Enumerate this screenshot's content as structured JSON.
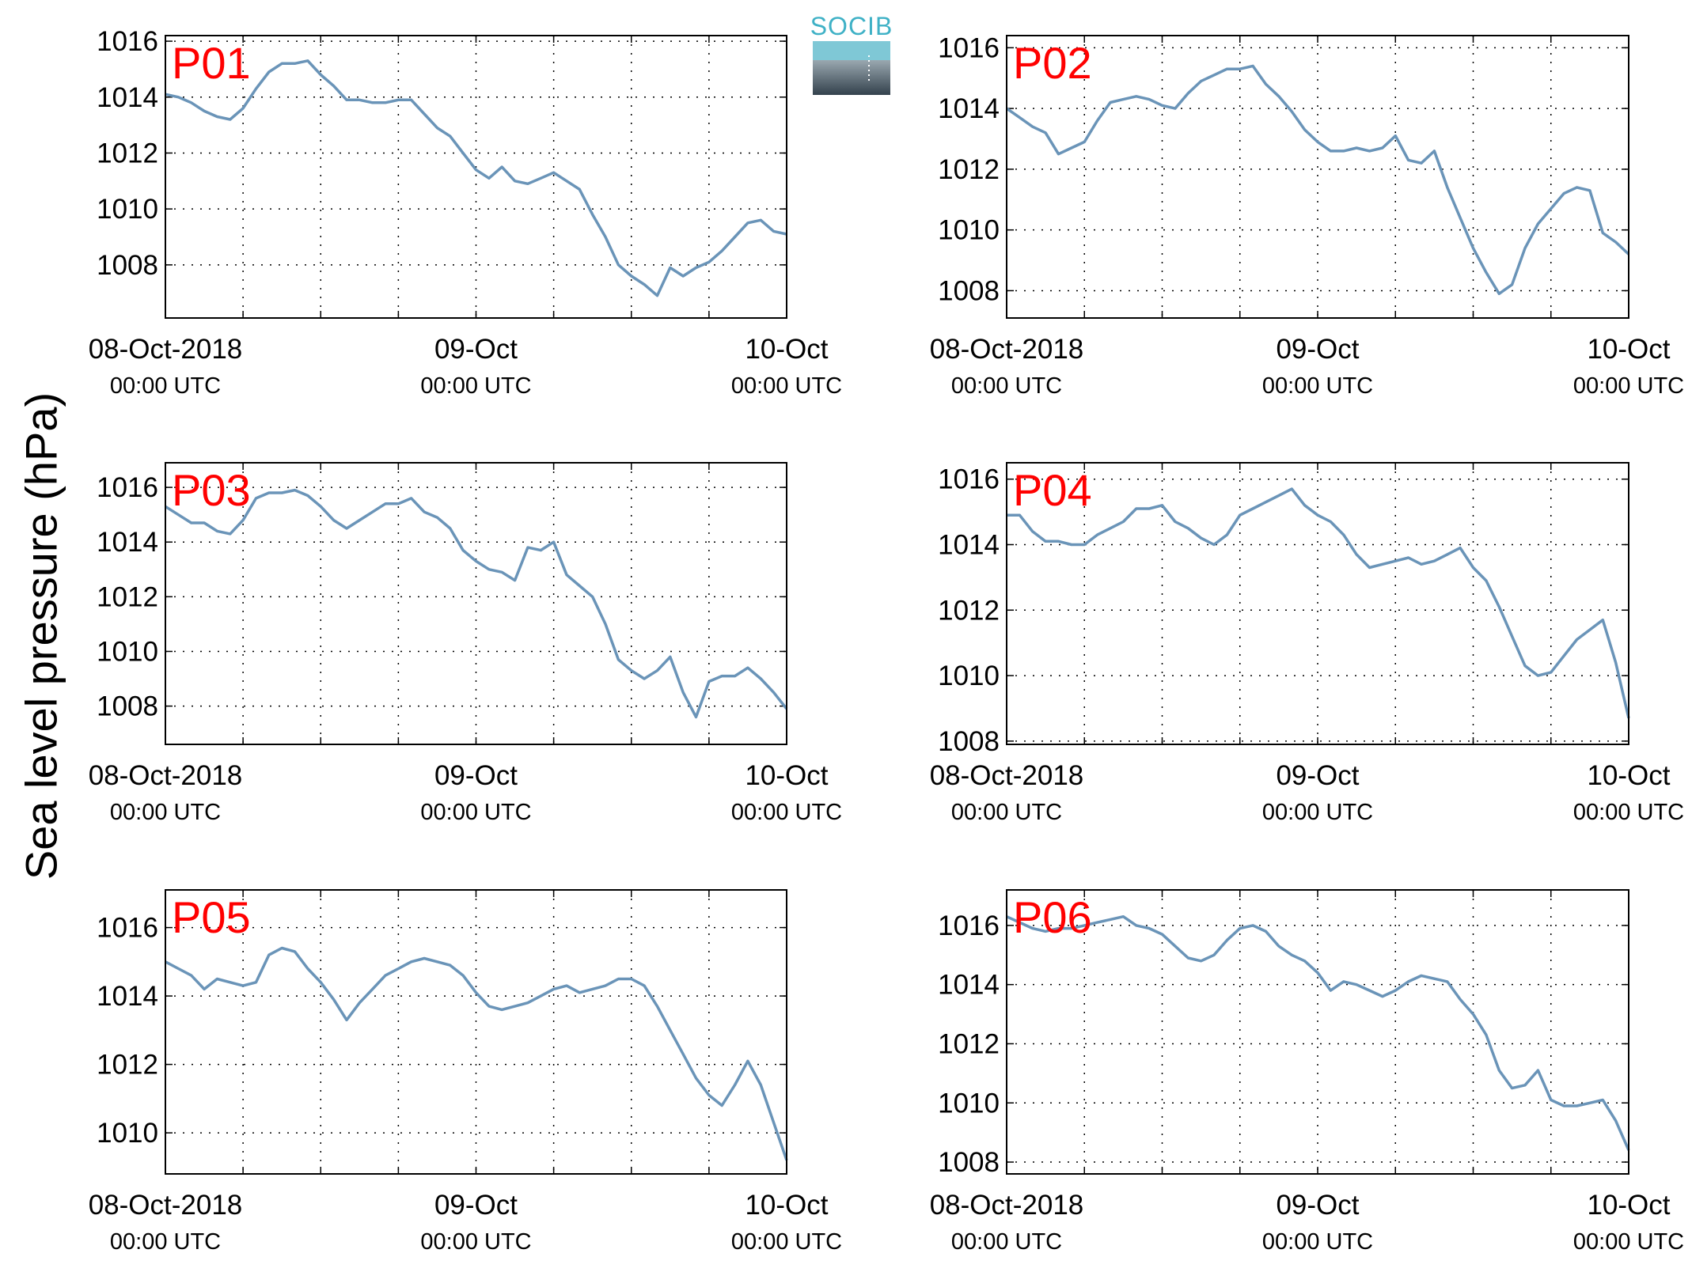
{
  "ylabel": "Sea level pressure (hPa)",
  "logo": {
    "text": "SOCIB"
  },
  "colors": {
    "line": "#6a94b8",
    "label": "#ff0000"
  },
  "x_ticks": [
    {
      "main": "08-Oct-2018",
      "sub": "00:00 UTC"
    },
    {
      "main": "09-Oct",
      "sub": "00:00 UTC"
    },
    {
      "main": "10-Oct",
      "sub": "00:00 UTC"
    }
  ],
  "chart_data": [
    {
      "type": "line",
      "label": "P01",
      "xlim": [
        0,
        48
      ],
      "ylim": [
        1006.1,
        1016.2
      ],
      "yticks": [
        1008,
        1010,
        1012,
        1014,
        1016
      ],
      "x": [
        0,
        1,
        2,
        3,
        4,
        5,
        6,
        7,
        8,
        9,
        10,
        11,
        12,
        13,
        14,
        15,
        16,
        17,
        18,
        19,
        20,
        21,
        22,
        23,
        24,
        25,
        26,
        27,
        28,
        29,
        30,
        31,
        32,
        33,
        34,
        35,
        36,
        37,
        38,
        39,
        40,
        41,
        42,
        43,
        44,
        45,
        46,
        47,
        48
      ],
      "y": [
        1014.1,
        1014.0,
        1013.8,
        1013.5,
        1013.3,
        1013.2,
        1013.6,
        1014.3,
        1014.9,
        1015.2,
        1015.2,
        1015.3,
        1014.8,
        1014.4,
        1013.9,
        1013.9,
        1013.8,
        1013.8,
        1013.9,
        1013.9,
        1013.4,
        1012.9,
        1012.6,
        1012.0,
        1011.4,
        1011.1,
        1011.5,
        1011.0,
        1010.9,
        1011.1,
        1011.3,
        1011.0,
        1010.7,
        1009.8,
        1009.0,
        1008.0,
        1007.6,
        1007.3,
        1006.9,
        1007.9,
        1007.6,
        1007.9,
        1008.1,
        1008.5,
        1009.0,
        1009.5,
        1009.6,
        1009.2,
        1009.1
      ]
    },
    {
      "type": "line",
      "label": "P02",
      "xlim": [
        0,
        48
      ],
      "ylim": [
        1007.1,
        1016.4
      ],
      "yticks": [
        1008,
        1010,
        1012,
        1014,
        1016
      ],
      "x": [
        0,
        1,
        2,
        3,
        4,
        5,
        6,
        7,
        8,
        9,
        10,
        11,
        12,
        13,
        14,
        15,
        16,
        17,
        18,
        19,
        20,
        21,
        22,
        23,
        24,
        25,
        26,
        27,
        28,
        29,
        30,
        31,
        32,
        33,
        34,
        35,
        36,
        37,
        38,
        39,
        40,
        41,
        42,
        43,
        44,
        45,
        46,
        47,
        48
      ],
      "y": [
        1014.0,
        1013.7,
        1013.4,
        1013.2,
        1012.5,
        1012.7,
        1012.9,
        1013.6,
        1014.2,
        1014.3,
        1014.4,
        1014.3,
        1014.1,
        1014.0,
        1014.5,
        1014.9,
        1015.1,
        1015.3,
        1015.3,
        1015.4,
        1014.8,
        1014.4,
        1013.9,
        1013.3,
        1012.9,
        1012.6,
        1012.6,
        1012.7,
        1012.6,
        1012.7,
        1013.1,
        1012.3,
        1012.2,
        1012.6,
        1011.4,
        1010.4,
        1009.4,
        1008.6,
        1007.9,
        1008.2,
        1009.4,
        1010.2,
        1010.7,
        1011.2,
        1011.4,
        1011.3,
        1009.9,
        1009.6,
        1009.2
      ]
    },
    {
      "type": "line",
      "label": "P03",
      "xlim": [
        0,
        48
      ],
      "ylim": [
        1006.6,
        1016.9
      ],
      "yticks": [
        1008,
        1010,
        1012,
        1014,
        1016
      ],
      "x": [
        0,
        1,
        2,
        3,
        4,
        5,
        6,
        7,
        8,
        9,
        10,
        11,
        12,
        13,
        14,
        15,
        16,
        17,
        18,
        19,
        20,
        21,
        22,
        23,
        24,
        25,
        26,
        27,
        28,
        29,
        30,
        31,
        32,
        33,
        34,
        35,
        36,
        37,
        38,
        39,
        40,
        41,
        42,
        43,
        44,
        45,
        46,
        47,
        48
      ],
      "y": [
        1015.3,
        1015.0,
        1014.7,
        1014.7,
        1014.4,
        1014.3,
        1014.8,
        1015.6,
        1015.8,
        1015.8,
        1015.9,
        1015.7,
        1015.3,
        1014.8,
        1014.5,
        1014.8,
        1015.1,
        1015.4,
        1015.4,
        1015.6,
        1015.1,
        1014.9,
        1014.5,
        1013.7,
        1013.3,
        1013.0,
        1012.9,
        1012.6,
        1013.8,
        1013.7,
        1014.0,
        1012.8,
        1012.4,
        1012.0,
        1011.0,
        1009.7,
        1009.3,
        1009.0,
        1009.3,
        1009.8,
        1008.5,
        1007.6,
        1008.9,
        1009.1,
        1009.1,
        1009.4,
        1009.0,
        1008.5,
        1007.9
      ]
    },
    {
      "type": "line",
      "label": "P04",
      "xlim": [
        0,
        48
      ],
      "ylim": [
        1007.9,
        1016.5
      ],
      "yticks": [
        1008,
        1010,
        1012,
        1014,
        1016
      ],
      "x": [
        0,
        1,
        2,
        3,
        4,
        5,
        6,
        7,
        8,
        9,
        10,
        11,
        12,
        13,
        14,
        15,
        16,
        17,
        18,
        19,
        20,
        21,
        22,
        23,
        24,
        25,
        26,
        27,
        28,
        29,
        30,
        31,
        32,
        33,
        34,
        35,
        36,
        37,
        38,
        39,
        40,
        41,
        42,
        43,
        44,
        45,
        46,
        47,
        48
      ],
      "y": [
        1014.9,
        1014.9,
        1014.4,
        1014.1,
        1014.1,
        1014.0,
        1014.0,
        1014.3,
        1014.5,
        1014.7,
        1015.1,
        1015.1,
        1015.2,
        1014.7,
        1014.5,
        1014.2,
        1014.0,
        1014.3,
        1014.9,
        1015.1,
        1015.3,
        1015.5,
        1015.7,
        1015.2,
        1014.9,
        1014.7,
        1014.3,
        1013.7,
        1013.3,
        1013.4,
        1013.5,
        1013.6,
        1013.4,
        1013.5,
        1013.7,
        1013.9,
        1013.3,
        1012.9,
        1012.1,
        1011.2,
        1010.3,
        1010.0,
        1010.1,
        1010.6,
        1011.1,
        1011.4,
        1011.7,
        1010.4,
        1008.7
      ]
    },
    {
      "type": "line",
      "label": "P05",
      "xlim": [
        0,
        48
      ],
      "ylim": [
        1008.8,
        1017.1
      ],
      "yticks": [
        1010,
        1012,
        1014,
        1016
      ],
      "x": [
        0,
        1,
        2,
        3,
        4,
        5,
        6,
        7,
        8,
        9,
        10,
        11,
        12,
        13,
        14,
        15,
        16,
        17,
        18,
        19,
        20,
        21,
        22,
        23,
        24,
        25,
        26,
        27,
        28,
        29,
        30,
        31,
        32,
        33,
        34,
        35,
        36,
        37,
        38,
        39,
        40,
        41,
        42,
        43,
        44,
        45,
        46,
        47,
        48
      ],
      "y": [
        1015.0,
        1014.8,
        1014.6,
        1014.2,
        1014.5,
        1014.4,
        1014.3,
        1014.4,
        1015.2,
        1015.4,
        1015.3,
        1014.8,
        1014.4,
        1013.9,
        1013.3,
        1013.8,
        1014.2,
        1014.6,
        1014.8,
        1015.0,
        1015.1,
        1015.0,
        1014.9,
        1014.6,
        1014.1,
        1013.7,
        1013.6,
        1013.7,
        1013.8,
        1014.0,
        1014.2,
        1014.3,
        1014.1,
        1014.2,
        1014.3,
        1014.5,
        1014.5,
        1014.3,
        1013.7,
        1013.0,
        1012.3,
        1011.6,
        1011.1,
        1010.8,
        1011.4,
        1012.1,
        1011.4,
        1010.3,
        1009.2
      ]
    },
    {
      "type": "line",
      "label": "P06",
      "xlim": [
        0,
        48
      ],
      "ylim": [
        1007.6,
        1017.2
      ],
      "yticks": [
        1008,
        1010,
        1012,
        1014,
        1016
      ],
      "x": [
        0,
        1,
        2,
        3,
        4,
        5,
        6,
        7,
        8,
        9,
        10,
        11,
        12,
        13,
        14,
        15,
        16,
        17,
        18,
        19,
        20,
        21,
        22,
        23,
        24,
        25,
        26,
        27,
        28,
        29,
        30,
        31,
        32,
        33,
        34,
        35,
        36,
        37,
        38,
        39,
        40,
        41,
        42,
        43,
        44,
        45,
        46,
        47,
        48
      ],
      "y": [
        1016.3,
        1016.1,
        1015.9,
        1015.8,
        1015.9,
        1015.9,
        1016.0,
        1016.1,
        1016.2,
        1016.3,
        1016.0,
        1015.9,
        1015.7,
        1015.3,
        1014.9,
        1014.8,
        1015.0,
        1015.5,
        1015.9,
        1016.0,
        1015.8,
        1015.3,
        1015.0,
        1014.8,
        1014.4,
        1013.8,
        1014.1,
        1014.0,
        1013.8,
        1013.6,
        1013.8,
        1014.1,
        1014.3,
        1014.2,
        1014.1,
        1013.5,
        1013.0,
        1012.3,
        1011.1,
        1010.5,
        1010.6,
        1011.1,
        1010.1,
        1009.9,
        1009.9,
        1010.0,
        1010.1,
        1009.4,
        1008.4
      ]
    }
  ]
}
